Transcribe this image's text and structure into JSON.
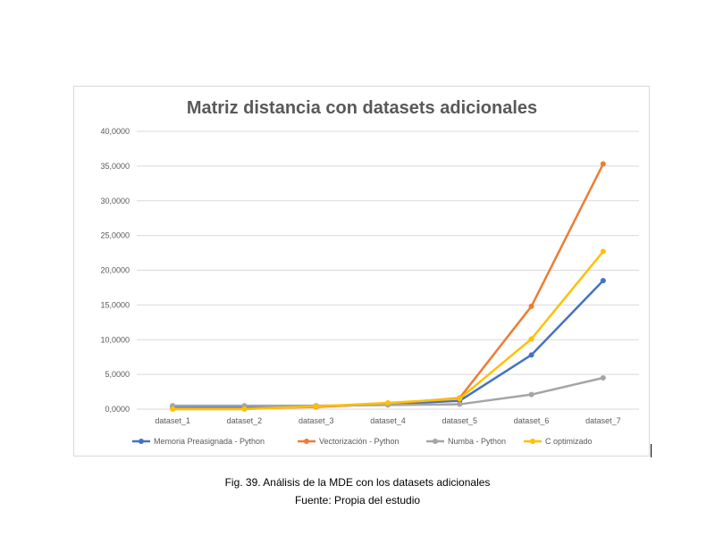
{
  "caption": {
    "figure": "Fig. 39. Análisis de la MDE con los datasets adicionales",
    "source": "Fuente: Propia del estudio"
  },
  "chart_data": {
    "type": "line",
    "title": "Matriz distancia con datasets adicionales",
    "xlabel": "",
    "ylabel": "",
    "categories": [
      "dataset_1",
      "dataset_2",
      "dataset_3",
      "dataset_4",
      "dataset_5",
      "dataset_6",
      "dataset_7"
    ],
    "ylim": [
      0,
      40
    ],
    "yticks": [
      0,
      5,
      10,
      15,
      20,
      25,
      30,
      35,
      40
    ],
    "ytick_labels": [
      "0,0000",
      "5,0000",
      "10,0000",
      "15,0000",
      "20,0000",
      "25,0000",
      "30,0000",
      "35,0000",
      "40,0000"
    ],
    "grid": true,
    "legend_position": "bottom",
    "series": [
      {
        "name": "Memoria Preasignada - Python",
        "color": "#4472c4",
        "values": [
          0.3,
          0.3,
          0.4,
          0.7,
          1.2,
          7.8,
          18.5
        ]
      },
      {
        "name": "Vectorización - Python",
        "color": "#ed7d31",
        "values": [
          0.1,
          0.1,
          0.3,
          0.8,
          1.6,
          14.8,
          35.3
        ]
      },
      {
        "name": "Numba - Python",
        "color": "#a5a5a5",
        "values": [
          0.5,
          0.5,
          0.5,
          0.6,
          0.7,
          2.1,
          4.5
        ]
      },
      {
        "name": "C optimizado",
        "color": "#ffc000",
        "values": [
          0.0,
          0.0,
          0.4,
          0.9,
          1.5,
          10.1,
          22.7
        ]
      }
    ]
  }
}
